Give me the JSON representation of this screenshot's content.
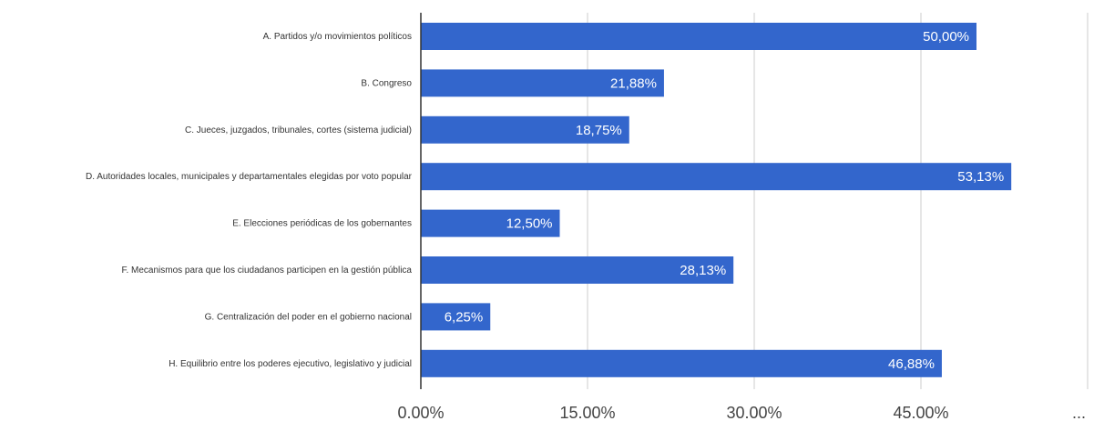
{
  "chart_data": {
    "type": "bar",
    "orientation": "horizontal",
    "categories": [
      "A. Partidos y/o movimientos políticos",
      "B. Congreso",
      "C. Jueces, juzgados, tribunales, cortes (sistema judicial)",
      "D. Autoridades locales, municipales y departamentales elegidas por voto popular",
      "E. Elecciones periódicas de los gobernantes",
      "F. Mecanismos para que los ciudadanos participen en la gestión pública",
      "G. Centralización del poder en el gobierno nacional",
      "H. Equilibrio entre los poderes ejecutivo, legislativo y judicial"
    ],
    "values": [
      50.0,
      21.88,
      18.75,
      53.13,
      12.5,
      28.13,
      6.25,
      46.88
    ],
    "data_labels": [
      "50,00%",
      "21,88%",
      "18,75%",
      "53,13%",
      "12,50%",
      "28,13%",
      "6,25%",
      "46,88%"
    ],
    "xlim": [
      0,
      60
    ],
    "x_ticks": [
      0,
      15,
      30,
      45,
      60
    ],
    "x_tick_labels": [
      "0.00%",
      "15.00%",
      "30.00%",
      "45.00%",
      "..."
    ],
    "bar_color": "#3366cc",
    "grid": true,
    "legend": "none"
  }
}
